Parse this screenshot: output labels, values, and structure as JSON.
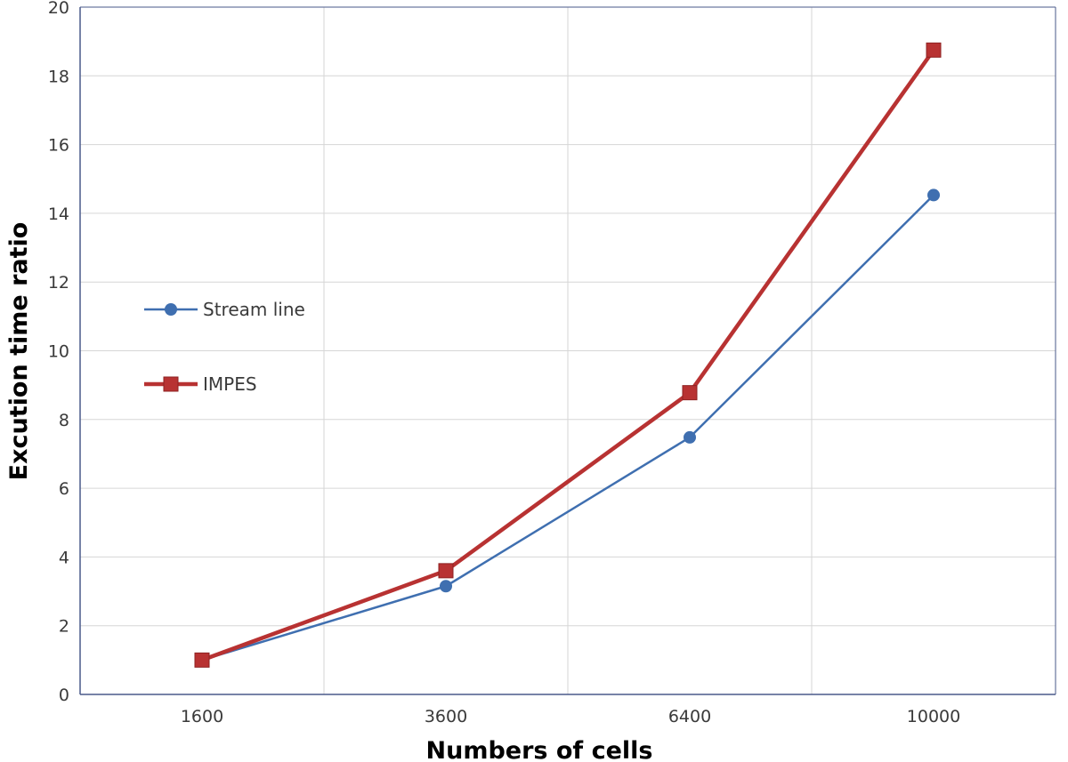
{
  "chart_data": {
    "type": "line",
    "categories": [
      "1600",
      "3600",
      "6400",
      "10000"
    ],
    "series": [
      {
        "name": "Stream line",
        "values": [
          1.0,
          3.15,
          7.48,
          14.53
        ],
        "color": "#3f6fb0",
        "marker": "circle"
      },
      {
        "name": "IMPES",
        "values": [
          1.0,
          3.6,
          8.78,
          18.75
        ],
        "color": "#b83232",
        "marker": "square"
      }
    ],
    "xlabel": "Numbers of cells",
    "ylabel": "Excution time ratio",
    "ylim": [
      0,
      20
    ],
    "yticks": [
      0,
      2,
      4,
      6,
      8,
      10,
      12,
      14,
      16,
      18,
      20
    ],
    "grid": true,
    "legend_position": "left"
  },
  "colors": {
    "grid": "#d6d6d6",
    "axis": "#4a5a8a",
    "text": "#3a3a3a"
  }
}
